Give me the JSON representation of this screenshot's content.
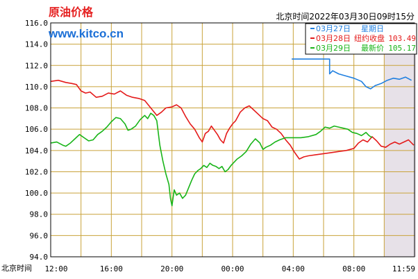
{
  "header": {
    "title": "原油价格",
    "site": "www.kitco.cn",
    "timestamp": "北京时间2022年03月30日09时15分"
  },
  "colors": {
    "title": "#e52020",
    "site": "#1b6fd6",
    "grid": "#c9a23a",
    "frame": "#000000",
    "shade": "#e7e1e8",
    "blue": "#1f7fe0",
    "red": "#e41a1a",
    "green": "#18b418"
  },
  "legend": [
    {
      "date": "03月27日",
      "label": "星期日",
      "value": "",
      "color": "#1f7fe0"
    },
    {
      "date": "03月28日",
      "label": "纽约收盘",
      "value": "103.49",
      "color": "#e41a1a"
    },
    {
      "date": "03月29日",
      "label": "最新价",
      "value": "105.17",
      "color": "#18b418"
    }
  ],
  "chart_data": {
    "type": "line",
    "xlabel": "北京时间",
    "ylim": [
      94,
      116
    ],
    "y_ticks": [
      "116.0",
      "114.0",
      "112.0",
      "110.0",
      "108.0",
      "106.0",
      "104.0",
      "102.0",
      "100.0",
      "98.0",
      "96.0",
      "94.0"
    ],
    "x_ticks": [
      "12:00",
      "16:00",
      "20:00",
      "00:00",
      "04:00",
      "08:00",
      "11:59"
    ],
    "x_range_hours": [
      0,
      24
    ],
    "shaded_hours": [
      [
        22,
        24.1
      ]
    ],
    "series": [
      {
        "name": "03月27日",
        "color": "#1f7fe0",
        "points": [
          [
            15.9,
            112.6
          ],
          [
            18.4,
            112.6
          ],
          [
            18.4,
            111.2
          ],
          [
            18.6,
            111.5
          ],
          [
            19.0,
            111.2
          ],
          [
            19.5,
            111.0
          ],
          [
            20.0,
            110.8
          ],
          [
            20.5,
            110.5
          ],
          [
            20.8,
            110.0
          ],
          [
            21.1,
            109.8
          ],
          [
            21.4,
            110.1
          ],
          [
            21.8,
            110.3
          ],
          [
            22.2,
            110.6
          ],
          [
            22.6,
            110.8
          ],
          [
            23.0,
            110.7
          ],
          [
            23.4,
            110.9
          ],
          [
            23.8,
            110.6
          ]
        ]
      },
      {
        "name": "03月28日",
        "color": "#e41a1a",
        "points": [
          [
            0,
            110.5
          ],
          [
            0.5,
            110.6
          ],
          [
            1.0,
            110.4
          ],
          [
            1.4,
            110.3
          ],
          [
            1.7,
            110.2
          ],
          [
            2.0,
            109.6
          ],
          [
            2.3,
            109.4
          ],
          [
            2.6,
            109.5
          ],
          [
            3.0,
            109.0
          ],
          [
            3.4,
            109.1
          ],
          [
            3.8,
            109.4
          ],
          [
            4.2,
            109.3
          ],
          [
            4.6,
            109.6
          ],
          [
            5.0,
            109.2
          ],
          [
            5.4,
            109.0
          ],
          [
            5.8,
            108.9
          ],
          [
            6.2,
            108.7
          ],
          [
            6.6,
            108.0
          ],
          [
            7.0,
            107.3
          ],
          [
            7.3,
            107.6
          ],
          [
            7.6,
            108.0
          ],
          [
            8.0,
            108.1
          ],
          [
            8.3,
            108.3
          ],
          [
            8.6,
            108.0
          ],
          [
            8.9,
            107.2
          ],
          [
            9.2,
            106.5
          ],
          [
            9.5,
            106.0
          ],
          [
            9.8,
            105.2
          ],
          [
            10.0,
            104.8
          ],
          [
            10.2,
            105.6
          ],
          [
            10.4,
            105.8
          ],
          [
            10.6,
            106.3
          ],
          [
            10.8,
            105.9
          ],
          [
            11.0,
            105.5
          ],
          [
            11.2,
            105.0
          ],
          [
            11.4,
            104.7
          ],
          [
            11.6,
            105.6
          ],
          [
            11.8,
            106.1
          ],
          [
            12.0,
            106.5
          ],
          [
            12.2,
            106.8
          ],
          [
            12.5,
            107.6
          ],
          [
            12.8,
            108.0
          ],
          [
            13.1,
            108.2
          ],
          [
            13.4,
            107.8
          ],
          [
            13.7,
            107.4
          ],
          [
            14.0,
            107.0
          ],
          [
            14.3,
            106.8
          ],
          [
            14.6,
            106.2
          ],
          [
            14.9,
            106.0
          ],
          [
            15.2,
            105.6
          ],
          [
            15.5,
            105.0
          ],
          [
            15.8,
            104.5
          ],
          [
            16.1,
            103.8
          ],
          [
            16.4,
            103.2
          ],
          [
            16.7,
            103.4
          ],
          [
            17.0,
            103.5
          ],
          [
            17.5,
            103.6
          ],
          [
            18.0,
            103.7
          ],
          [
            18.5,
            103.8
          ],
          [
            19.0,
            103.9
          ],
          [
            19.5,
            104.0
          ],
          [
            20.0,
            104.2
          ],
          [
            20.3,
            104.7
          ],
          [
            20.6,
            105.0
          ],
          [
            20.9,
            104.8
          ],
          [
            21.2,
            105.3
          ],
          [
            21.5,
            104.9
          ],
          [
            21.8,
            104.4
          ],
          [
            22.1,
            104.3
          ],
          [
            22.4,
            104.6
          ],
          [
            22.7,
            104.8
          ],
          [
            23.0,
            104.6
          ],
          [
            23.3,
            104.8
          ],
          [
            23.6,
            105.0
          ],
          [
            23.95,
            104.5
          ]
        ]
      },
      {
        "name": "03月29日",
        "color": "#18b418",
        "points": [
          [
            0,
            104.7
          ],
          [
            0.4,
            104.8
          ],
          [
            0.8,
            104.5
          ],
          [
            1.0,
            104.4
          ],
          [
            1.3,
            104.7
          ],
          [
            1.6,
            105.1
          ],
          [
            1.9,
            105.5
          ],
          [
            2.2,
            105.2
          ],
          [
            2.5,
            104.9
          ],
          [
            2.8,
            105.0
          ],
          [
            3.1,
            105.5
          ],
          [
            3.4,
            105.8
          ],
          [
            3.7,
            106.2
          ],
          [
            4.0,
            106.7
          ],
          [
            4.3,
            107.1
          ],
          [
            4.6,
            107.0
          ],
          [
            4.9,
            106.5
          ],
          [
            5.1,
            105.9
          ],
          [
            5.3,
            106.0
          ],
          [
            5.6,
            106.3
          ],
          [
            5.9,
            106.9
          ],
          [
            6.2,
            107.3
          ],
          [
            6.4,
            107.0
          ],
          [
            6.6,
            107.5
          ],
          [
            6.8,
            107.3
          ],
          [
            7.0,
            106.8
          ],
          [
            7.2,
            104.5
          ],
          [
            7.4,
            103.0
          ],
          [
            7.6,
            101.8
          ],
          [
            7.8,
            100.8
          ],
          [
            7.9,
            99.5
          ],
          [
            8.0,
            98.8
          ],
          [
            8.15,
            100.3
          ],
          [
            8.3,
            99.8
          ],
          [
            8.5,
            100.0
          ],
          [
            8.7,
            99.5
          ],
          [
            8.9,
            99.8
          ],
          [
            9.1,
            100.5
          ],
          [
            9.3,
            101.2
          ],
          [
            9.5,
            101.8
          ],
          [
            9.7,
            102.1
          ],
          [
            9.9,
            102.3
          ],
          [
            10.1,
            102.6
          ],
          [
            10.3,
            102.4
          ],
          [
            10.5,
            102.8
          ],
          [
            10.7,
            102.6
          ],
          [
            10.9,
            102.5
          ],
          [
            11.1,
            102.3
          ],
          [
            11.3,
            102.5
          ],
          [
            11.5,
            102.0
          ],
          [
            11.7,
            102.2
          ],
          [
            11.9,
            102.6
          ],
          [
            12.1,
            102.9
          ],
          [
            12.3,
            103.2
          ],
          [
            12.6,
            103.5
          ],
          [
            12.9,
            103.9
          ],
          [
            13.2,
            104.6
          ],
          [
            13.5,
            105.1
          ],
          [
            13.8,
            104.7
          ],
          [
            14.0,
            104.1
          ],
          [
            14.2,
            104.3
          ],
          [
            14.5,
            104.5
          ],
          [
            14.8,
            104.8
          ],
          [
            15.1,
            105.0
          ],
          [
            15.5,
            105.2
          ],
          [
            16.0,
            105.2
          ],
          [
            16.5,
            105.2
          ],
          [
            17.0,
            105.3
          ],
          [
            17.5,
            105.5
          ],
          [
            17.8,
            105.8
          ],
          [
            18.1,
            106.2
          ],
          [
            18.4,
            106.1
          ],
          [
            18.7,
            106.3
          ],
          [
            19.0,
            106.2
          ],
          [
            19.3,
            106.1
          ],
          [
            19.6,
            106.0
          ],
          [
            19.9,
            105.7
          ],
          [
            20.2,
            105.6
          ],
          [
            20.5,
            105.4
          ],
          [
            20.8,
            105.7
          ],
          [
            21.0,
            105.4
          ],
          [
            21.2,
            105.2
          ]
        ]
      }
    ]
  }
}
